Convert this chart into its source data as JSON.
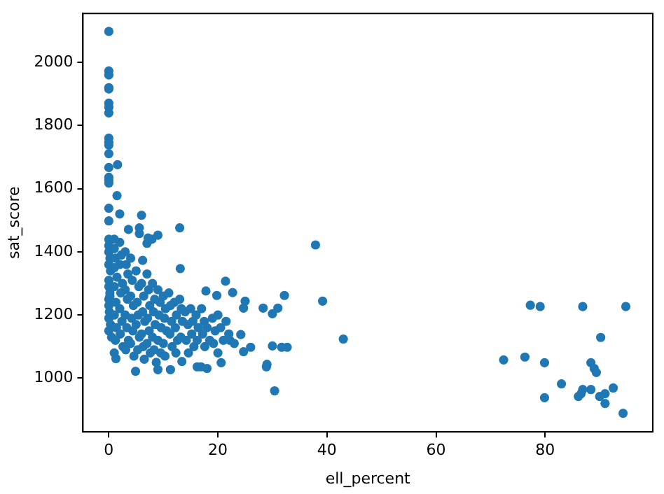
{
  "chart_data": {
    "type": "scatter",
    "xlabel": "ell_percent",
    "ylabel": "sat_score",
    "xlim": [
      -4.75,
      99.75
    ],
    "ylim": [
      830,
      2155
    ],
    "xticks": [
      0,
      20,
      40,
      60,
      80
    ],
    "yticks": [
      1000,
      1200,
      1400,
      1600,
      1800,
      2000
    ],
    "grid": false,
    "legend": false,
    "marker": "circle",
    "series": [
      {
        "color": "#1f77b4",
        "x": [
          0,
          0,
          0,
          0,
          0,
          0,
          0,
          0,
          0,
          0,
          0,
          0,
          1.6,
          0,
          0,
          0,
          0,
          1.5,
          0,
          0,
          2,
          6,
          13,
          3.6,
          5.6,
          5.6,
          1,
          7,
          7.9,
          37.9,
          39.2,
          43,
          30.4,
          32.2,
          31,
          30,
          28.3,
          32.7,
          31.7,
          30,
          29,
          28.9,
          26,
          24.7,
          24.7,
          25,
          22.7,
          21.4,
          19.8,
          17.8,
          24.2,
          22.2,
          20.6,
          18,
          16.9,
          16.2,
          13.4,
          11.3,
          9,
          4.9,
          1.3,
          13.1,
          6.2,
          9,
          7.2,
          77.3,
          79.1,
          86.9,
          94.8,
          90.2,
          72.4,
          76.3,
          79.9,
          79.9,
          83,
          88.4,
          89,
          89.4,
          86.1,
          86.6,
          86.9,
          88.4,
          90,
          91,
          91,
          92.5,
          94.3,
          0,
          0,
          0,
          0.2,
          0,
          0.3,
          0,
          0,
          0.2,
          0,
          0,
          0.1,
          0,
          0.3,
          0,
          0.5,
          0.2,
          1,
          1.2,
          1,
          1.5,
          1,
          1.3,
          1,
          1.4,
          1.2,
          1,
          2,
          2.3,
          2,
          2.5,
          2.2,
          2,
          2.4,
          2.1,
          2.6,
          3,
          3.2,
          3.5,
          3,
          3.4,
          3,
          3.3,
          3.6,
          3.1,
          4,
          4.3,
          4,
          4.5,
          4.2,
          4.4,
          4,
          4.6,
          5,
          5.5,
          5.2,
          5.4,
          5,
          5.6,
          5.3,
          6,
          6.4,
          6.2,
          6.6,
          6,
          6.3,
          6.5,
          7,
          7.3,
          7.5,
          7.1,
          7.4,
          7,
          7.6,
          8,
          8.4,
          8.2,
          8.5,
          8,
          8.3,
          8.7,
          9,
          9.4,
          9.2,
          9.6,
          9,
          9.5,
          10,
          10.4,
          10.2,
          10.6,
          10,
          10.3,
          11,
          11.3,
          11.5,
          11.2,
          11.6,
          12,
          12.4,
          12.2,
          12.6,
          12.3,
          13,
          13.3,
          13.5,
          13.2,
          14,
          14.5,
          14.2,
          14.6,
          15,
          15.4,
          15.2,
          15.6,
          16,
          16.4,
          16.2,
          17,
          17.5,
          17.2,
          17.6,
          18,
          18.5,
          19,
          19.5,
          19.2,
          20,
          20.5,
          21,
          21.5,
          22,
          23,
          20
        ],
        "values": [
          2098,
          1973,
          1960,
          1920,
          1916,
          1871,
          1858,
          1840,
          1760,
          1747,
          1738,
          1711,
          1676,
          1667,
          1636,
          1627,
          1618,
          1578,
          1538,
          1498,
          1520,
          1516,
          1476,
          1471,
          1476,
          1458,
          1440,
          1427,
          1440,
          1422,
          1244,
          1124,
          960,
          1262,
          1222,
          1204,
          1222,
          1098,
          1098,
          1102,
          1044,
          1036,
          1098,
          1084,
          1222,
          1244,
          1271,
          1307,
          1262,
          1276,
          1138,
          1120,
          1049,
          1031,
          1036,
          1036,
          1053,
          1027,
          1027,
          1022,
          1062,
          1347,
          1373,
          1453,
          1444,
          1231,
          1227,
          1227,
          1227,
          1129,
          1058,
          1067,
          1049,
          938,
          982,
          1049,
          1031,
          1018,
          942,
          951,
          964,
          964,
          942,
          951,
          920,
          969,
          889,
          1440,
          1420,
          1400,
          1380,
          1360,
          1340,
          1310,
          1290,
          1270,
          1250,
          1230,
          1210,
          1190,
          1170,
          1150,
          1130,
          1260,
          1410,
          1380,
          1350,
          1320,
          1290,
          1240,
          1200,
          1160,
          1120,
          1080,
          1430,
          1390,
          1360,
          1300,
          1270,
          1220,
          1180,
          1140,
          1100,
          1400,
          1360,
          1330,
          1280,
          1250,
          1200,
          1160,
          1120,
          1090,
          1380,
          1310,
          1260,
          1230,
          1190,
          1150,
          1110,
          1070,
          1340,
          1290,
          1240,
          1200,
          1170,
          1130,
          1090,
          1300,
          1260,
          1210,
          1180,
          1140,
          1100,
          1060,
          1330,
          1280,
          1230,
          1190,
          1150,
          1110,
          1080,
          1300,
          1250,
          1210,
          1170,
          1130,
          1090,
          1050,
          1280,
          1240,
          1200,
          1160,
          1120,
          1080,
          1260,
          1220,
          1190,
          1150,
          1110,
          1070,
          1270,
          1230,
          1180,
          1140,
          1100,
          1240,
          1200,
          1160,
          1120,
          1080,
          1250,
          1220,
          1180,
          1130,
          1210,
          1170,
          1120,
          1080,
          1220,
          1180,
          1140,
          1100,
          1200,
          1160,
          1120,
          1220,
          1180,
          1140,
          1100,
          1160,
          1120,
          1190,
          1150,
          1110,
          1200,
          1160,
          1120,
          1180,
          1140,
          1110,
          1080
        ]
      }
    ]
  }
}
